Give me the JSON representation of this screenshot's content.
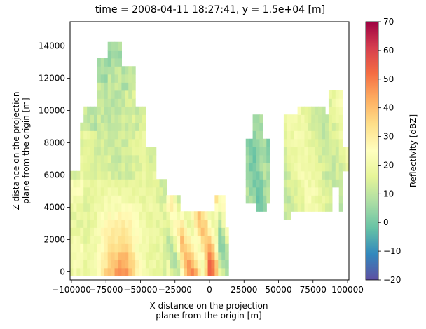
{
  "chart_data": {
    "type": "heatmap",
    "title": "time = 2008-04-11 18:27:41, y = 1.5e+04 [m]",
    "xlabel": "X distance on the projection\nplane from the origin [m]",
    "ylabel": "Z distance on the projection\nplane from the origin [m]",
    "xlim": [
      -101000,
      101000
    ],
    "ylim": [
      -500,
      15500
    ],
    "xticks": [
      -100000,
      -75000,
      -50000,
      -25000,
      0,
      25000,
      50000,
      75000,
      100000
    ],
    "xtick_labels": [
      "−100000",
      "−75000",
      "−50000",
      "−25000",
      "0",
      "25000",
      "50000",
      "75000",
      "100000"
    ],
    "yticks": [
      0,
      2000,
      4000,
      6000,
      8000,
      10000,
      12000,
      14000
    ],
    "ytick_labels": [
      "0",
      "2000",
      "4000",
      "6000",
      "8000",
      "10000",
      "12000",
      "14000"
    ],
    "colorbar": {
      "label": "Reflectivity [dBZ]",
      "colormap": "Spectral_r",
      "vmin": -20,
      "vmax": 70,
      "ticks": [
        -20,
        -10,
        0,
        10,
        20,
        30,
        40,
        50,
        60,
        70
      ],
      "tick_labels": [
        "−20",
        "−10",
        "0",
        "10",
        "20",
        "30",
        "40",
        "50",
        "60",
        "70"
      ]
    },
    "region_estimates_dBZ": [
      {
        "x_range": [
          -100000,
          -92000
        ],
        "z_range": [
          0,
          6000
        ],
        "value": 20
      },
      {
        "x_range": [
          -90000,
          -80000
        ],
        "z_range": [
          4000,
          10000
        ],
        "value": 14
      },
      {
        "x_range": [
          -80000,
          -50000
        ],
        "z_range": [
          0,
          5000
        ],
        "value": 38
      },
      {
        "x_range": [
          -70000,
          -55000
        ],
        "z_range": [
          500,
          3500
        ],
        "value": 45
      },
      {
        "x_range": [
          -75000,
          -60000
        ],
        "z_range": [
          9000,
          14500
        ],
        "value": 12
      },
      {
        "x_range": [
          -20000,
          0
        ],
        "z_range": [
          0,
          3000
        ],
        "value": 40
      },
      {
        "x_range": [
          -3000,
          2000
        ],
        "z_range": [
          0,
          1500
        ],
        "value": 55
      },
      {
        "x_range": [
          27000,
          43000
        ],
        "z_range": [
          4000,
          9700
        ],
        "value": 4
      },
      {
        "x_range": [
          55000,
          95000
        ],
        "z_range": [
          3500,
          10400
        ],
        "value": 16
      }
    ]
  }
}
